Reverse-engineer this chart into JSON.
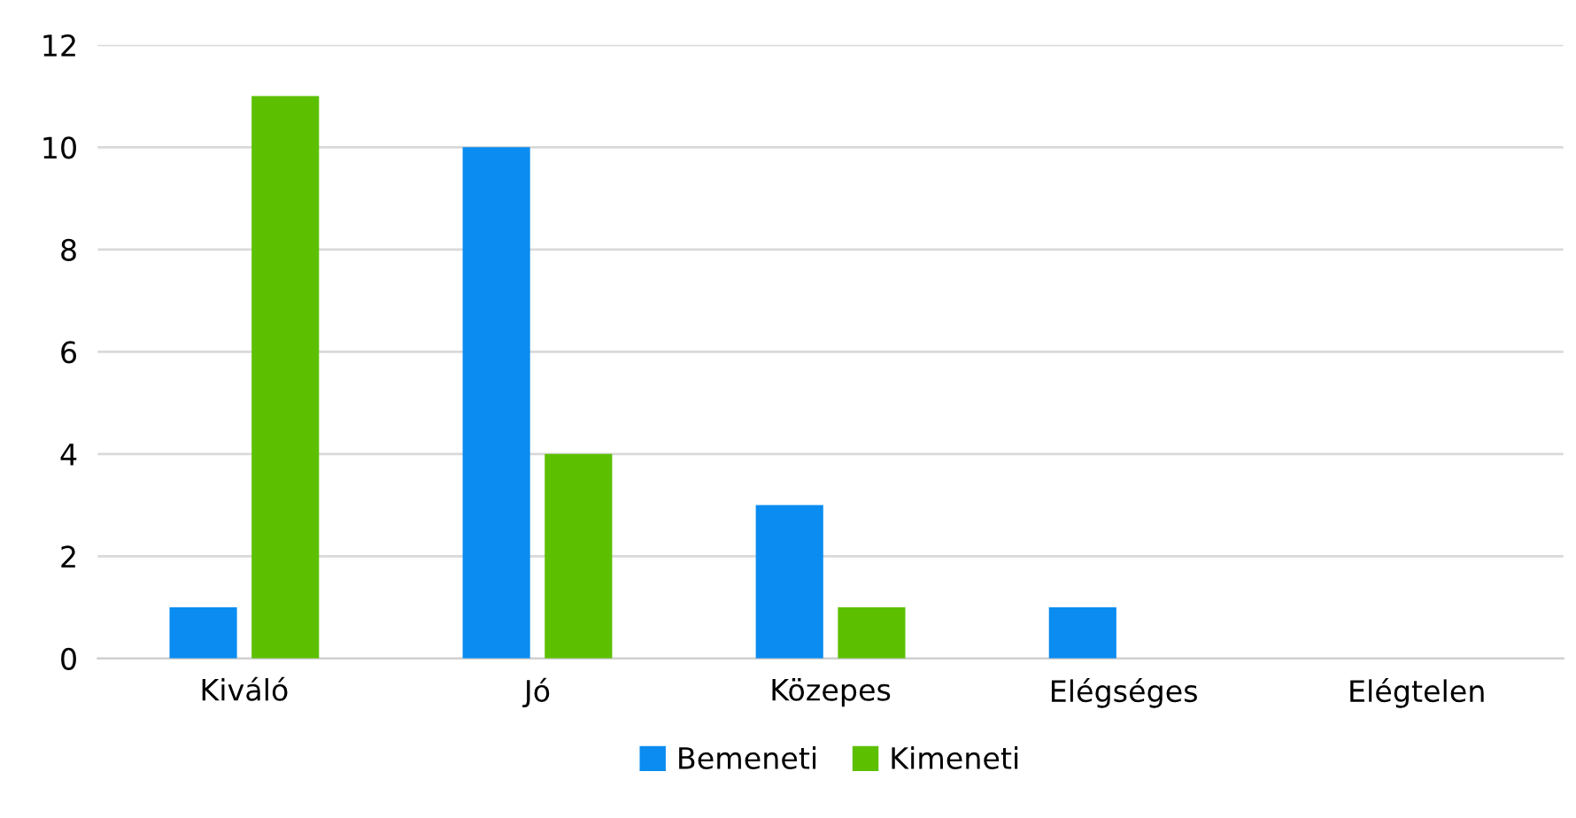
{
  "chart_data": {
    "type": "bar",
    "categories": [
      "Kiváló",
      "Jó",
      "Közepes",
      "Elégséges",
      "Elégtelen"
    ],
    "series": [
      {
        "name": "Bemeneti",
        "color": "#0a8cf0",
        "values": [
          1,
          10,
          3,
          1,
          0
        ]
      },
      {
        "name": "Kimeneti",
        "color": "#5cc000",
        "values": [
          11,
          4,
          1,
          0,
          0
        ]
      }
    ],
    "ylim": [
      0,
      12
    ],
    "yticks": [
      0,
      2,
      4,
      6,
      8,
      10,
      12
    ],
    "grid": "y",
    "legend": "bottom"
  }
}
